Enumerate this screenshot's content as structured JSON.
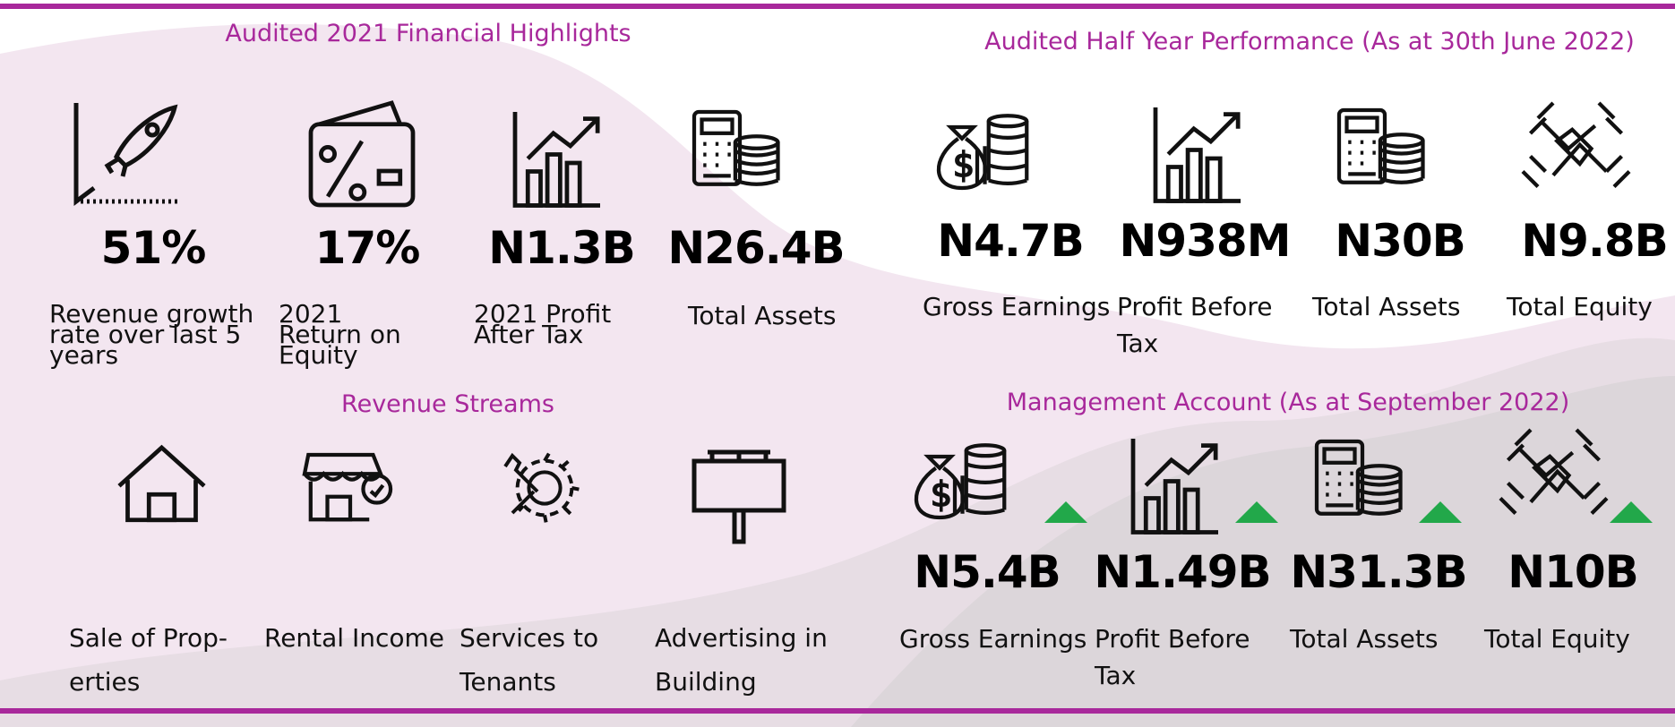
{
  "audited_2021": {
    "title": "Audited 2021 Financial Highlights",
    "items": [
      {
        "value": "51%",
        "label": "Revenue growth rate over last 5 years"
      },
      {
        "value": "17%",
        "label": "2021 Return on Equity"
      },
      {
        "value": "N1.3B",
        "label": "2021 Profit After Tax"
      },
      {
        "value": "N26.4B",
        "label": "Total Assets"
      }
    ]
  },
  "half_year": {
    "title": "Audited Half Year Performance (As at 30th June 2022)",
    "items": [
      {
        "value": "N4.7B",
        "label": "Gross Earnings"
      },
      {
        "value": "N938M",
        "label": "Profit Before\n Tax"
      },
      {
        "value": "N30B",
        "label": "Total Assets"
      },
      {
        "value": "N9.8B",
        "label": "Total Equity"
      }
    ]
  },
  "revenue_streams": {
    "title": "Revenue Streams",
    "items": [
      "Sale of Prop-\nerties",
      "Rental Income",
      "Services to\nTenants",
      "Advertising in\nBuilding"
    ]
  },
  "management": {
    "title": "Management Account (As at September 2022)",
    "items": [
      {
        "value": "N5.4B",
        "label": "Gross Earnings"
      },
      {
        "value": "N1.49B",
        "label": "Profit Before\n Tax"
      },
      {
        "value": "N31.3B",
        "label": "Total Assets"
      },
      {
        "value": "N10B",
        "label": "Total Equity"
      }
    ]
  }
}
